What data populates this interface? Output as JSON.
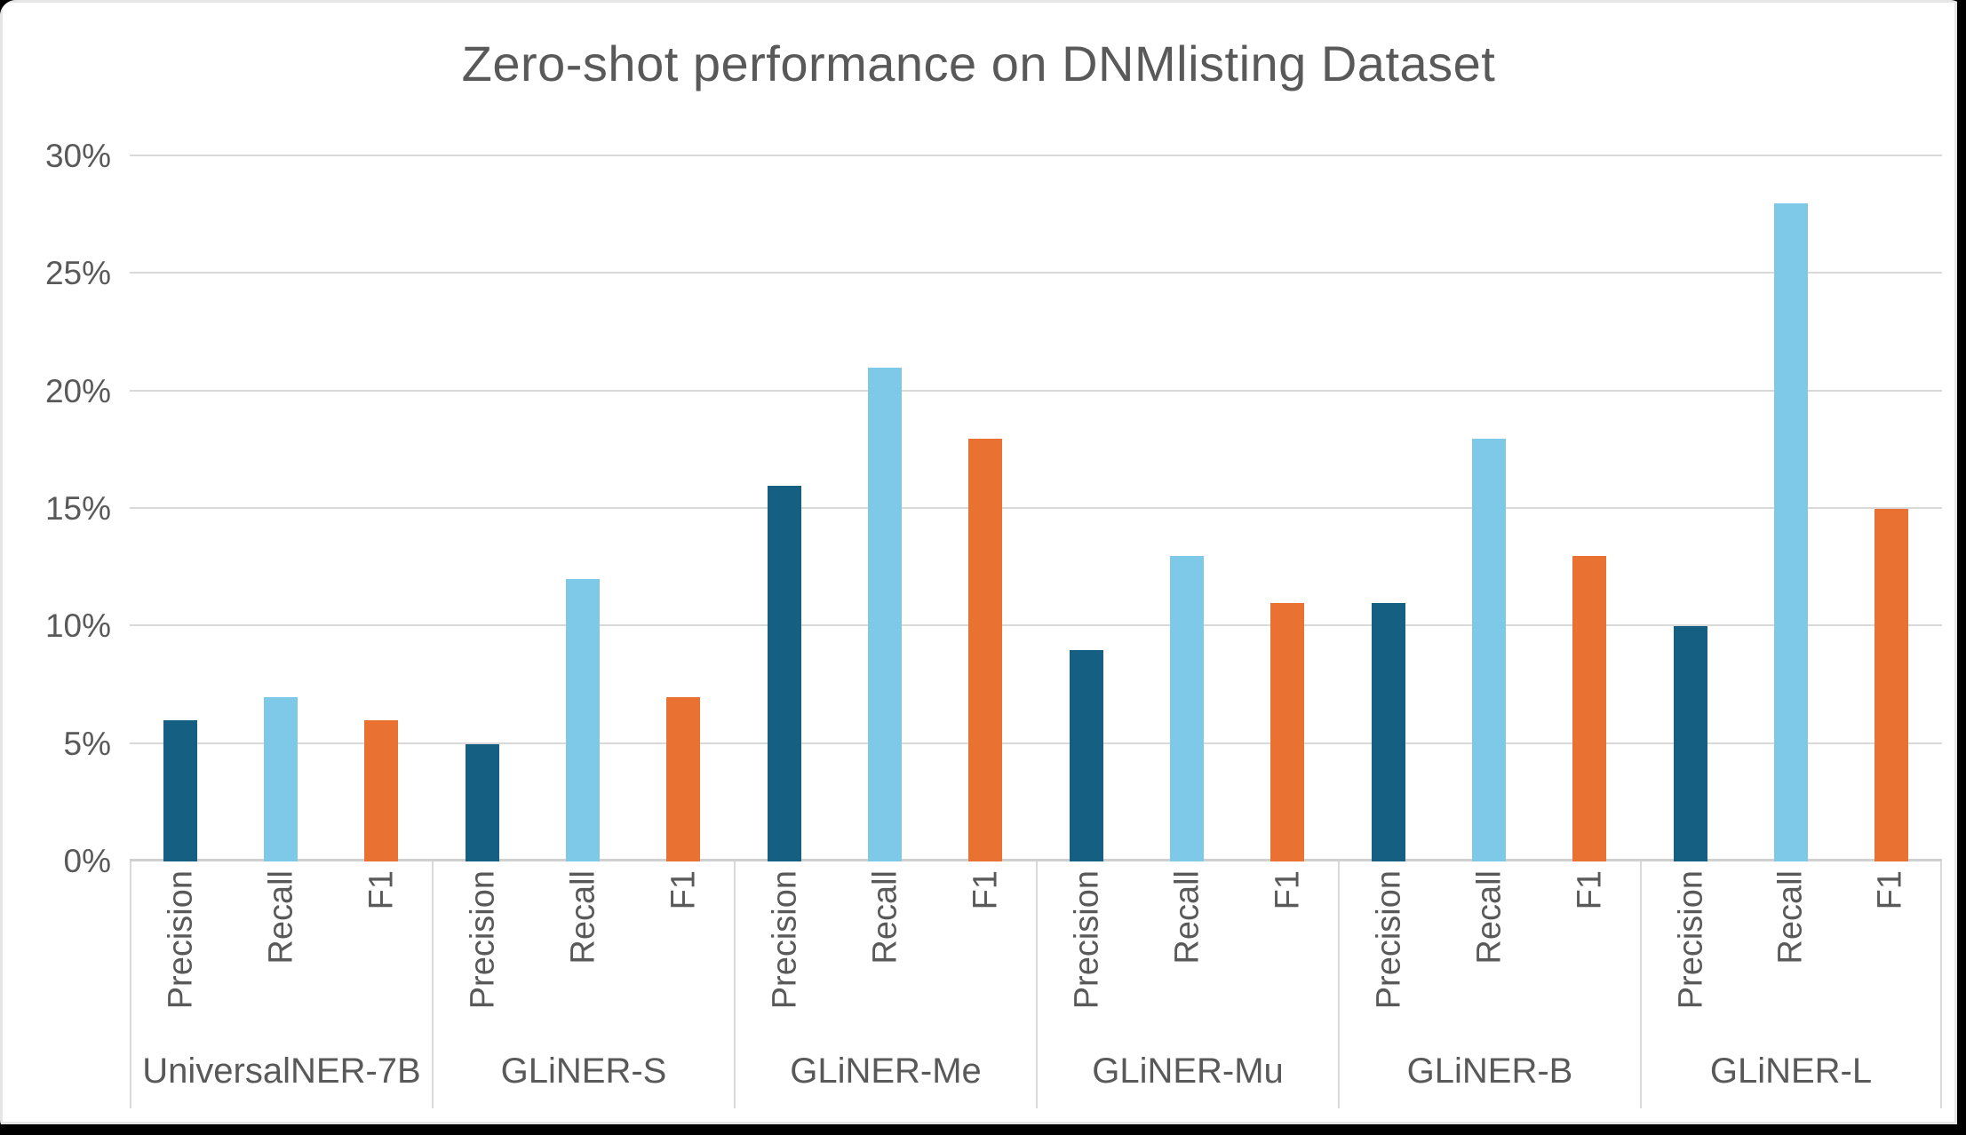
{
  "chart_data": {
    "type": "bar",
    "title": "Zero-shot performance on DNMlisting Dataset",
    "categories": [
      "UniversalNER-7B",
      "GLiNER-S",
      "GLiNER-Me",
      "GLiNER-Mu",
      "GLiNER-B",
      "GLiNER-L"
    ],
    "series": [
      {
        "name": "Precision",
        "color": "#156082",
        "values": [
          6,
          5,
          16,
          9,
          11,
          10
        ]
      },
      {
        "name": "Recall",
        "color": "#7EC8E8",
        "values": [
          7,
          12,
          21,
          13,
          18,
          28
        ]
      },
      {
        "name": "F1",
        "color": "#E97132",
        "values": [
          6,
          7,
          18,
          11,
          13,
          15
        ]
      }
    ],
    "ylabel": "",
    "xlabel": "",
    "ylim": [
      0,
      30
    ],
    "ytick_step": 5,
    "ytick_suffix": "%",
    "grid": true,
    "legend": "none",
    "text_color": "#595959",
    "gridline_color": "#D9D9D9"
  }
}
